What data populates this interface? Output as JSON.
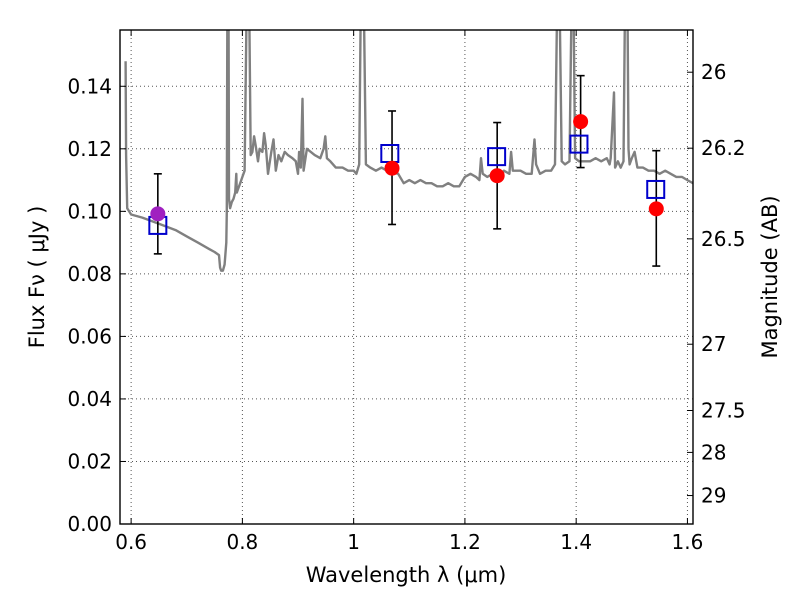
{
  "chart_data": {
    "type": "scatter",
    "title": "",
    "xlabel": "Wavelength  λ (μm)",
    "ylabel": "Flux  Fν  ( μJy )",
    "y2label": "Magnitude (AB)",
    "xlim": [
      0.58,
      1.61
    ],
    "ylim": [
      0.0,
      0.158
    ],
    "grid": true,
    "x_ticks": [
      0.6,
      0.8,
      1.0,
      1.2,
      1.4,
      1.6
    ],
    "x_tick_labels": [
      "0.6",
      "0.8",
      "1",
      "1.2",
      "1.4",
      "1.6"
    ],
    "y_ticks": [
      0.0,
      0.02,
      0.04,
      0.06,
      0.08,
      0.1,
      0.12,
      0.14
    ],
    "y_tick_labels": [
      "0.00",
      "0.02",
      "0.04",
      "0.06",
      "0.08",
      "0.10",
      "0.12",
      "0.14"
    ],
    "y2_ticks": [
      {
        "label": "26",
        "flux": 0.1445
      },
      {
        "label": "26.2",
        "flux": 0.1202
      },
      {
        "label": "26.5",
        "flux": 0.0912
      },
      {
        "label": "27",
        "flux": 0.0575
      },
      {
        "label": "27.5",
        "flux": 0.0363
      },
      {
        "label": "28",
        "flux": 0.0229
      },
      {
        "label": "29",
        "flux": 0.0091
      }
    ],
    "colors": {
      "observed": "#ff0000",
      "observed_first": "#a020c0",
      "model_band": "#0000cc",
      "spectrum": "#808080",
      "errorbar": "#000000",
      "grid": "#555555"
    },
    "series": [
      {
        "role": "observed",
        "points": [
          {
            "x": 0.648,
            "y": 0.0992,
            "yerr_low": 0.0128,
            "yerr_high": 0.0128
          },
          {
            "x": 1.069,
            "y": 0.1138,
            "yerr_low": 0.018,
            "yerr_high": 0.0183
          },
          {
            "x": 1.258,
            "y": 0.1114,
            "yerr_low": 0.017,
            "yerr_high": 0.017
          },
          {
            "x": 1.408,
            "y": 0.1287,
            "yerr_low": 0.0147,
            "yerr_high": 0.0147
          },
          {
            "x": 1.544,
            "y": 0.1008,
            "yerr_low": 0.0183,
            "yerr_high": 0.0186
          }
        ]
      },
      {
        "role": "model-band",
        "points": [
          {
            "x": 0.648,
            "y": 0.0955
          },
          {
            "x": 1.065,
            "y": 0.1185
          },
          {
            "x": 1.257,
            "y": 0.1175
          },
          {
            "x": 1.405,
            "y": 0.1215
          },
          {
            "x": 1.543,
            "y": 0.107
          }
        ]
      },
      {
        "role": "spectrum",
        "points": [
          [
            0.59,
            0.148
          ],
          [
            0.591,
            0.118
          ],
          [
            0.593,
            0.101
          ],
          [
            0.6,
            0.099
          ],
          [
            0.62,
            0.098
          ],
          [
            0.65,
            0.096
          ],
          [
            0.68,
            0.094
          ],
          [
            0.7,
            0.092
          ],
          [
            0.72,
            0.09
          ],
          [
            0.74,
            0.088
          ],
          [
            0.75,
            0.087
          ],
          [
            0.758,
            0.086
          ],
          [
            0.76,
            0.082
          ],
          [
            0.762,
            0.081
          ],
          [
            0.765,
            0.081
          ],
          [
            0.768,
            0.083
          ],
          [
            0.771,
            0.09
          ],
          [
            0.772,
            0.1
          ],
          [
            0.773,
            0.17
          ],
          [
            0.775,
            0.17
          ],
          [
            0.776,
            0.104
          ],
          [
            0.778,
            0.101
          ],
          [
            0.781,
            0.103
          ],
          [
            0.784,
            0.104
          ],
          [
            0.787,
            0.106
          ],
          [
            0.789,
            0.112
          ],
          [
            0.79,
            0.106
          ],
          [
            0.792,
            0.107
          ],
          [
            0.796,
            0.109
          ],
          [
            0.8,
            0.111
          ],
          [
            0.804,
            0.113
          ],
          [
            0.808,
            0.17
          ],
          [
            0.812,
            0.17
          ],
          [
            0.815,
            0.118
          ],
          [
            0.818,
            0.119
          ],
          [
            0.821,
            0.124
          ],
          [
            0.824,
            0.121
          ],
          [
            0.828,
            0.116
          ],
          [
            0.831,
            0.12
          ],
          [
            0.836,
            0.119
          ],
          [
            0.839,
            0.125
          ],
          [
            0.842,
            0.121
          ],
          [
            0.846,
            0.112
          ],
          [
            0.852,
            0.119
          ],
          [
            0.856,
            0.123
          ],
          [
            0.86,
            0.113
          ],
          [
            0.865,
            0.118
          ],
          [
            0.87,
            0.116
          ],
          [
            0.876,
            0.119
          ],
          [
            0.882,
            0.118
          ],
          [
            0.89,
            0.117
          ],
          [
            0.896,
            0.116
          ],
          [
            0.9,
            0.112
          ],
          [
            0.902,
            0.119
          ],
          [
            0.905,
            0.114
          ],
          [
            0.908,
            0.136
          ],
          [
            0.91,
            0.113
          ],
          [
            0.916,
            0.12
          ],
          [
            0.93,
            0.118
          ],
          [
            0.94,
            0.117
          ],
          [
            0.946,
            0.12
          ],
          [
            0.949,
            0.124
          ],
          [
            0.952,
            0.117
          ],
          [
            0.958,
            0.116
          ],
          [
            0.968,
            0.114
          ],
          [
            0.98,
            0.114
          ],
          [
            0.99,
            0.113
          ],
          [
            1.0,
            0.113
          ],
          [
            1.005,
            0.112
          ],
          [
            1.01,
            0.115
          ],
          [
            1.013,
            0.17
          ],
          [
            1.018,
            0.17
          ],
          [
            1.022,
            0.115
          ],
          [
            1.03,
            0.114
          ],
          [
            1.04,
            0.113
          ],
          [
            1.05,
            0.114
          ],
          [
            1.06,
            0.113
          ],
          [
            1.08,
            0.112
          ],
          [
            1.09,
            0.109
          ],
          [
            1.1,
            0.11
          ],
          [
            1.11,
            0.109
          ],
          [
            1.12,
            0.11
          ],
          [
            1.13,
            0.109
          ],
          [
            1.14,
            0.109
          ],
          [
            1.15,
            0.108
          ],
          [
            1.16,
            0.108
          ],
          [
            1.17,
            0.109
          ],
          [
            1.18,
            0.108
          ],
          [
            1.19,
            0.108
          ],
          [
            1.2,
            0.111
          ],
          [
            1.21,
            0.112
          ],
          [
            1.22,
            0.111
          ],
          [
            1.226,
            0.11
          ],
          [
            1.229,
            0.117
          ],
          [
            1.232,
            0.112
          ],
          [
            1.24,
            0.111
          ],
          [
            1.25,
            0.112
          ],
          [
            1.262,
            0.111
          ],
          [
            1.27,
            0.113
          ],
          [
            1.28,
            0.112
          ],
          [
            1.283,
            0.119
          ],
          [
            1.286,
            0.113
          ],
          [
            1.3,
            0.113
          ],
          [
            1.31,
            0.112
          ],
          [
            1.32,
            0.112
          ],
          [
            1.325,
            0.123
          ],
          [
            1.328,
            0.115
          ],
          [
            1.335,
            0.112
          ],
          [
            1.345,
            0.113
          ],
          [
            1.355,
            0.113
          ],
          [
            1.362,
            0.115
          ],
          [
            1.366,
            0.17
          ],
          [
            1.37,
            0.17
          ],
          [
            1.374,
            0.116
          ],
          [
            1.38,
            0.115
          ],
          [
            1.388,
            0.116
          ],
          [
            1.392,
            0.17
          ],
          [
            1.395,
            0.17
          ],
          [
            1.398,
            0.117
          ],
          [
            1.405,
            0.116
          ],
          [
            1.415,
            0.116
          ],
          [
            1.425,
            0.116
          ],
          [
            1.435,
            0.117
          ],
          [
            1.445,
            0.116
          ],
          [
            1.455,
            0.117
          ],
          [
            1.46,
            0.115
          ],
          [
            1.462,
            0.117
          ],
          [
            1.468,
            0.138
          ],
          [
            1.47,
            0.114
          ],
          [
            1.475,
            0.116
          ],
          [
            1.48,
            0.114
          ],
          [
            1.485,
            0.116
          ],
          [
            1.488,
            0.17
          ],
          [
            1.492,
            0.17
          ],
          [
            1.494,
            0.12
          ],
          [
            1.496,
            0.115
          ],
          [
            1.5,
            0.117
          ],
          [
            1.505,
            0.119
          ],
          [
            1.51,
            0.114
          ],
          [
            1.52,
            0.114
          ],
          [
            1.53,
            0.113
          ],
          [
            1.54,
            0.113
          ],
          [
            1.55,
            0.112
          ],
          [
            1.56,
            0.113
          ],
          [
            1.57,
            0.112
          ],
          [
            1.58,
            0.111
          ],
          [
            1.59,
            0.111
          ],
          [
            1.6,
            0.11
          ],
          [
            1.61,
            0.109
          ]
        ]
      }
    ]
  }
}
